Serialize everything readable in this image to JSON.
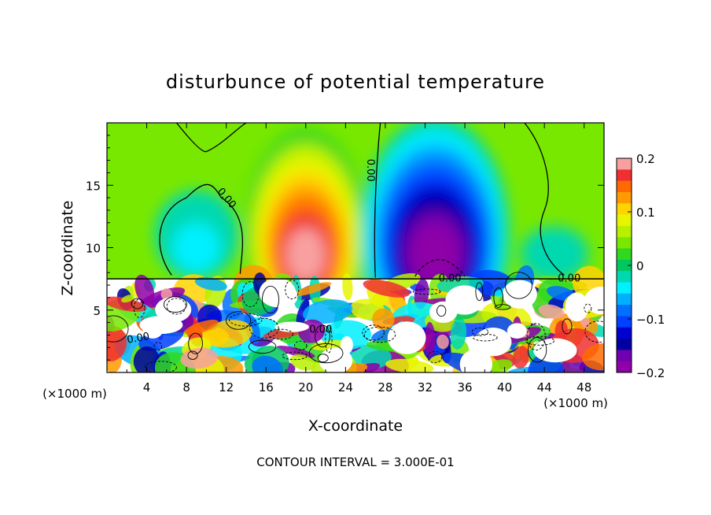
{
  "chart_data": {
    "type": "heatmap",
    "title": "disturbunce of potential temperature",
    "xlabel": "X-coordinate",
    "ylabel": "Z-coordinate",
    "x_unit": "(×1000 m)",
    "z_unit": "(×1000 m)",
    "xlim": [
      0,
      50
    ],
    "ylim": [
      0,
      20
    ],
    "x_ticks": [
      4,
      8,
      12,
      16,
      20,
      24,
      28,
      32,
      36,
      40,
      44,
      48
    ],
    "y_ticks": [
      5,
      10,
      15
    ],
    "colorbar": {
      "range": [
        -0.2,
        0.2
      ],
      "tick_values": [
        0.2,
        0.1,
        0,
        -0.1,
        -0.2
      ],
      "tick_labels": [
        "0.2",
        "0.1",
        "0",
        "−0.1",
        "−0.2"
      ],
      "colors": [
        "#f8a0a0",
        "#f03030",
        "#ff6a00",
        "#ff9a00",
        "#ffd400",
        "#e8f500",
        "#b8f000",
        "#78e800",
        "#30d820",
        "#00c860",
        "#00d8b0",
        "#00f0ff",
        "#00b0ff",
        "#0070ff",
        "#0040ff",
        "#0000d0",
        "#0000a0",
        "#7000b0",
        "#8e00a8"
      ]
    },
    "features": [
      {
        "kind": "positive anomaly",
        "x": 20,
        "z": 11,
        "peak": 0.2
      },
      {
        "kind": "negative anomaly",
        "x": 33,
        "z": 11,
        "peak": -0.2
      },
      {
        "kind": "weak negative patch",
        "x": 9,
        "z": 11,
        "value": -0.03
      }
    ],
    "contour_labels": [
      "0.00",
      "0.00",
      "0.00",
      "0.00",
      "0.00",
      "0.00"
    ],
    "footer": "CONTOUR INTERVAL = 3.000E-01"
  }
}
